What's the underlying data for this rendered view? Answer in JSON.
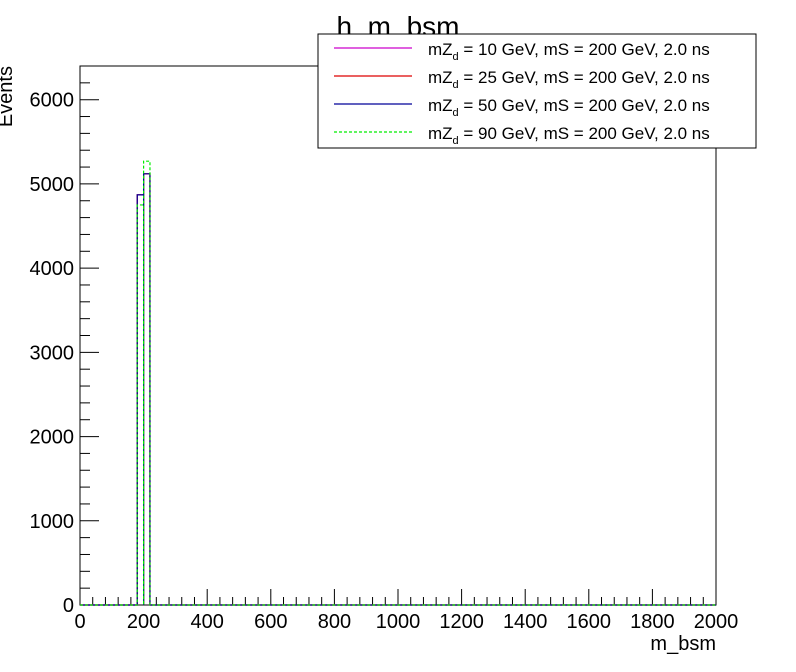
{
  "chart_data": {
    "type": "histogram",
    "title": "h_m_bsm",
    "xlabel": "m_bsm",
    "ylabel": "Events",
    "xlim": [
      0,
      2000
    ],
    "ylim": [
      0,
      6400
    ],
    "bin_width": 20,
    "x_ticks": [
      0,
      200,
      400,
      600,
      800,
      1000,
      1200,
      1400,
      1600,
      1800,
      2000
    ],
    "y_ticks": [
      0,
      1000,
      2000,
      3000,
      4000,
      5000,
      6000
    ],
    "grid": false,
    "legend_position": "top-right",
    "series": [
      {
        "name_prefix": "mZ",
        "name_sub": "d",
        "name_rest": " = 10 GeV, mS = 200 GeV, 2.0 ns",
        "color": "#cc00cc",
        "dashed": false,
        "bins": [
          {
            "x0": 180,
            "x1": 200,
            "y": 4870
          },
          {
            "x0": 200,
            "x1": 220,
            "y": 5120
          }
        ]
      },
      {
        "name_prefix": "mZ",
        "name_sub": "d",
        "name_rest": " = 25 GeV, mS = 200 GeV, 2.0 ns",
        "color": "#dd0000",
        "dashed": false,
        "bins": [
          {
            "x0": 180,
            "x1": 200,
            "y": 4870
          },
          {
            "x0": 200,
            "x1": 220,
            "y": 5120
          }
        ]
      },
      {
        "name_prefix": "mZ",
        "name_sub": "d",
        "name_rest": " = 50 GeV, mS = 200 GeV, 2.0 ns",
        "color": "#000099",
        "dashed": false,
        "bins": [
          {
            "x0": 180,
            "x1": 200,
            "y": 4870
          },
          {
            "x0": 200,
            "x1": 220,
            "y": 5120
          }
        ]
      },
      {
        "name_prefix": "mZ",
        "name_sub": "d",
        "name_rest": " = 90 GeV, mS = 200 GeV, 2.0 ns",
        "color": "#00ee00",
        "dashed": true,
        "bins": [
          {
            "x0": 180,
            "x1": 200,
            "y": 4750
          },
          {
            "x0": 200,
            "x1": 220,
            "y": 5270
          }
        ]
      }
    ]
  }
}
